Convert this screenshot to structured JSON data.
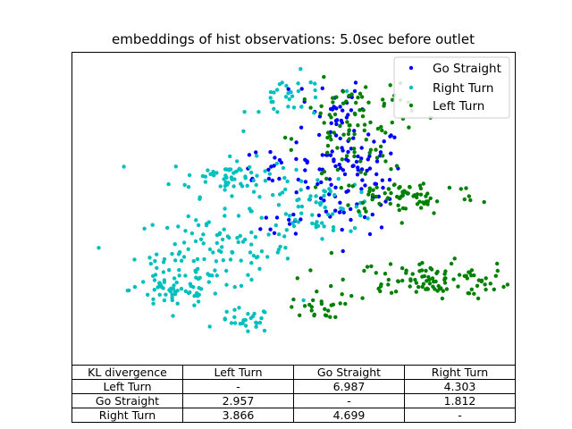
{
  "chart_data": {
    "type": "scatter",
    "title": "embeddings of hist observations: 5.0sec before outlet",
    "xlabel": "",
    "ylabel": "",
    "xlim": [
      0,
      100
    ],
    "ylim": [
      0,
      100
    ],
    "grid": false,
    "legend_position": "top-right",
    "series": [
      {
        "name": "Go Straight",
        "color": "#0000ff",
        "clusters": [
          {
            "cx": 63,
            "cy": 60,
            "sx": 6,
            "sy": 9,
            "n": 110
          },
          {
            "cx": 58,
            "cy": 83,
            "sx": 4,
            "sy": 5,
            "n": 28
          },
          {
            "cx": 46,
            "cy": 64,
            "sx": 6,
            "sy": 4,
            "n": 18
          },
          {
            "cx": 49,
            "cy": 46,
            "sx": 3,
            "sy": 3,
            "n": 10
          }
        ]
      },
      {
        "name": "Right Turn",
        "color": "#00bfbf",
        "clusters": [
          {
            "cx": 36,
            "cy": 60,
            "sx": 7,
            "sy": 3,
            "n": 70
          },
          {
            "cx": 32,
            "cy": 36,
            "sx": 9,
            "sy": 6,
            "n": 110
          },
          {
            "cx": 23,
            "cy": 24,
            "sx": 5,
            "sy": 3,
            "n": 55
          },
          {
            "cx": 39,
            "cy": 14,
            "sx": 3,
            "sy": 2,
            "n": 28
          },
          {
            "cx": 50,
            "cy": 85,
            "sx": 5,
            "sy": 4,
            "n": 32
          },
          {
            "cx": 56,
            "cy": 50,
            "sx": 7,
            "sy": 4,
            "n": 60
          }
        ]
      },
      {
        "name": "Left Turn",
        "color": "#008000",
        "clusters": [
          {
            "cx": 62,
            "cy": 72,
            "sx": 6,
            "sy": 9,
            "n": 80
          },
          {
            "cx": 76,
            "cy": 54,
            "sx": 8,
            "sy": 3,
            "n": 70
          },
          {
            "cx": 80,
            "cy": 27,
            "sx": 10,
            "sy": 3,
            "n": 110
          },
          {
            "cx": 55,
            "cy": 18,
            "sx": 3,
            "sy": 1.5,
            "n": 22
          },
          {
            "cx": 69,
            "cy": 84,
            "sx": 4,
            "sy": 4,
            "n": 18
          }
        ]
      }
    ]
  },
  "table": {
    "columns": [
      "KL divergence",
      "Left Turn",
      "Go Straight",
      "Right Turn"
    ],
    "rows": [
      [
        "Left Turn",
        "-",
        "6.987",
        "4.303"
      ],
      [
        "Go Straight",
        "2.957",
        "-",
        "1.812"
      ],
      [
        "Right Turn",
        "3.866",
        "4.699",
        "-"
      ]
    ]
  }
}
